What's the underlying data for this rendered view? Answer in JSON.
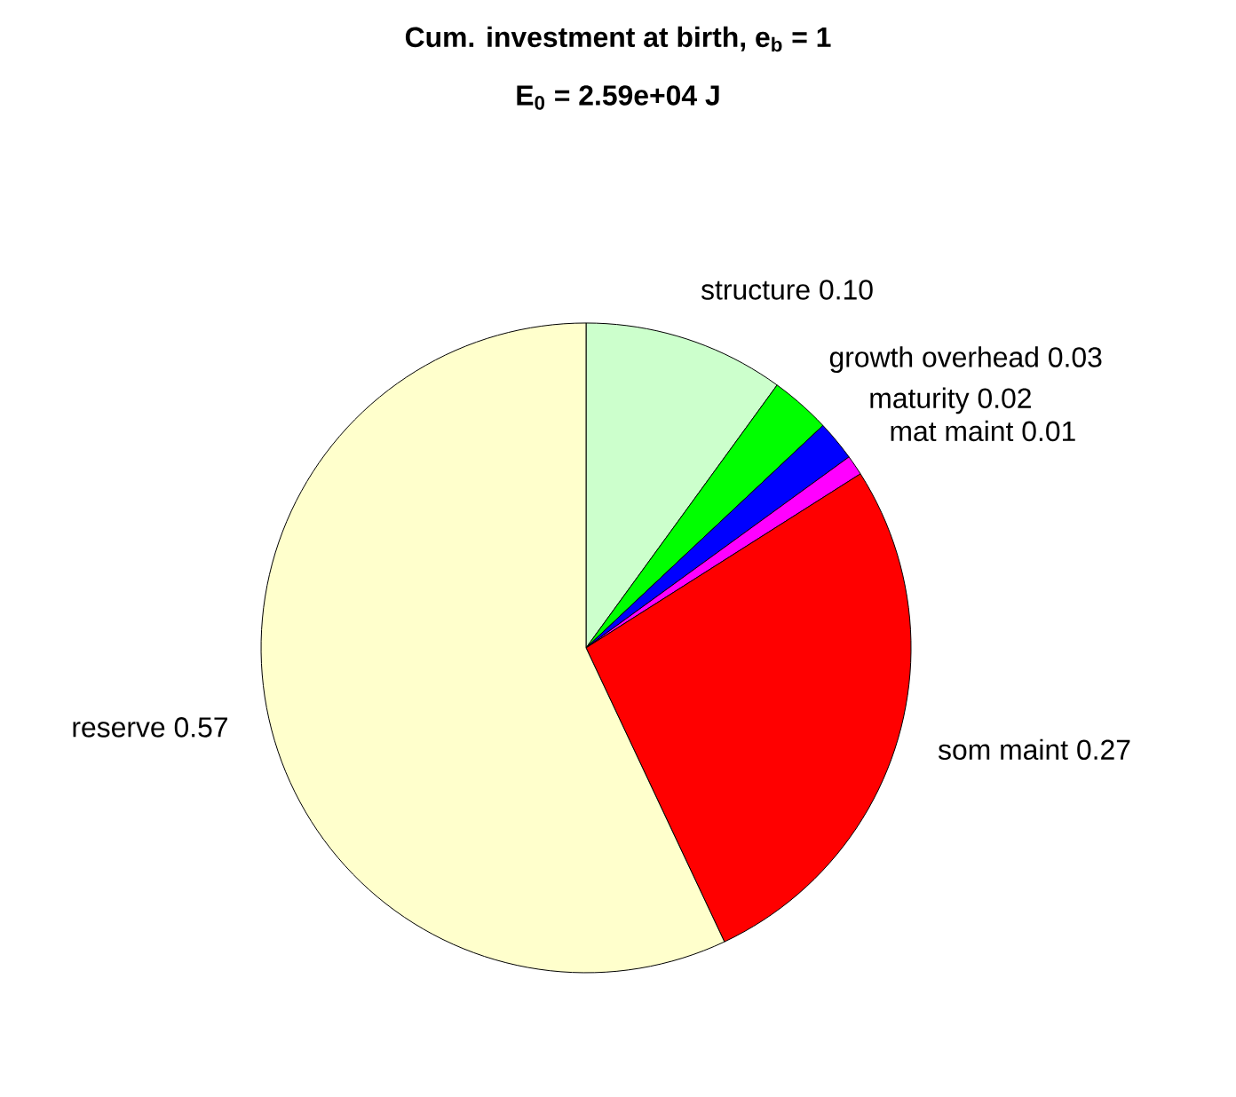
{
  "chart_data": {
    "type": "pie",
    "title": "Cum. investment at birth, e$_{b}$ = 1",
    "subtitle": "E$_{0}$ = 2.59e+04 J",
    "categories": [
      "structure",
      "growth overhead",
      "maturity",
      "mat maint",
      "som maint",
      "reserve"
    ],
    "values": [
      0.1,
      0.03,
      0.02,
      0.01,
      0.27,
      0.57
    ],
    "value_labels": [
      "0.10",
      "0.03",
      "0.02",
      "0.01",
      "0.27",
      "0.57"
    ],
    "colors": [
      "#ccffcc",
      "#00ff00",
      "#0000ff",
      "#ff00ff",
      "#ff0000",
      "#ffffcc"
    ]
  }
}
